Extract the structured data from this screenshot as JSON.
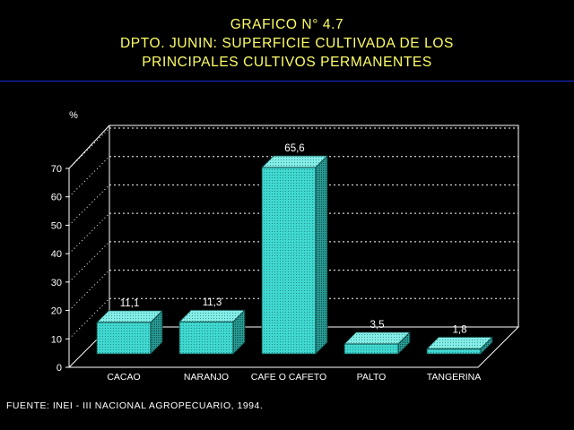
{
  "title": {
    "line1": "GRAFICO N° 4.7",
    "line2": "DPTO. JUNIN: SUPERFICIE CULTIVADA DE LOS",
    "line3": "PRINCIPALES CULTIVOS PERMANENTES"
  },
  "source": "FUENTE: INEI - III NACIONAL AGROPECUARIO, 1994.",
  "colors": {
    "background": "#000000",
    "title": "#ffff66",
    "rule": "#1a2cd6",
    "bar_front": "#40d8d0",
    "bar_top": "#7ae8e2",
    "bar_side": "#2aa8a0",
    "axis": "#ffffff"
  },
  "chart_data": {
    "type": "bar",
    "ylabel": "%",
    "ylim": [
      0,
      70
    ],
    "yticks": [
      0,
      10,
      20,
      30,
      40,
      50,
      60,
      70
    ],
    "grid": true,
    "categories": [
      "CACAO",
      "NARANJO",
      "CAFE O CAFETO",
      "PALTO",
      "TANGERINA"
    ],
    "values": [
      11.1,
      11.3,
      65.6,
      3.5,
      1.8
    ],
    "value_labels": [
      "11,1",
      "11,3",
      "65,6",
      "3,5",
      "1,8"
    ]
  }
}
